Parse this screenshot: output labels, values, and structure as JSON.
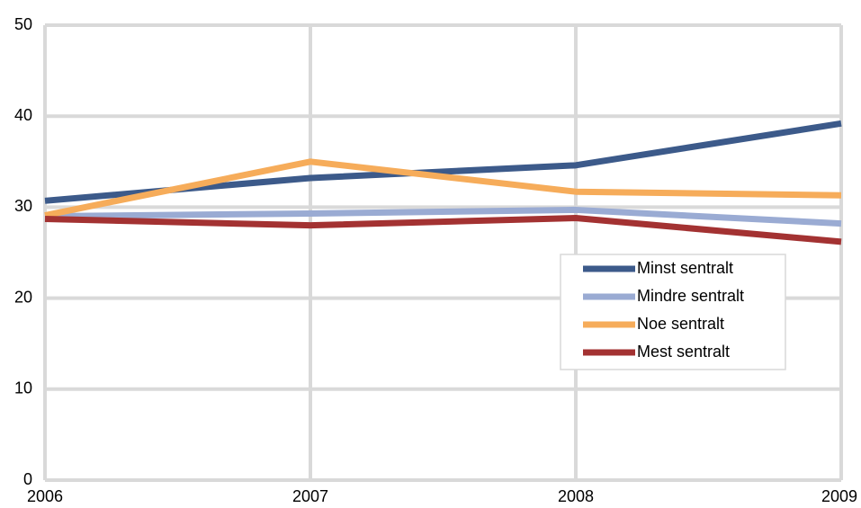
{
  "chart_data": {
    "type": "line",
    "x": [
      2006,
      2007,
      2008,
      2009
    ],
    "series": [
      {
        "name": "Minst sentralt",
        "color": "#3c5a8a",
        "values": [
          30.7,
          33.2,
          34.6,
          39.2
        ]
      },
      {
        "name": "Mindre sentralt",
        "color": "#9aabd3",
        "values": [
          29.0,
          29.3,
          29.7,
          28.2
        ]
      },
      {
        "name": "Noe sentralt",
        "color": "#f6ac5a",
        "values": [
          29.1,
          35.0,
          31.7,
          31.3
        ]
      },
      {
        "name": "Mest sentralt",
        "color": "#a33232",
        "values": [
          28.7,
          28.0,
          28.8,
          26.2
        ]
      }
    ],
    "xlim": [
      2006,
      2009
    ],
    "xticks": [
      2006,
      2007,
      2008,
      2009
    ],
    "ylim": [
      0,
      50
    ],
    "yticks": [
      0,
      10,
      20,
      30,
      40,
      50
    ],
    "grid": true
  }
}
